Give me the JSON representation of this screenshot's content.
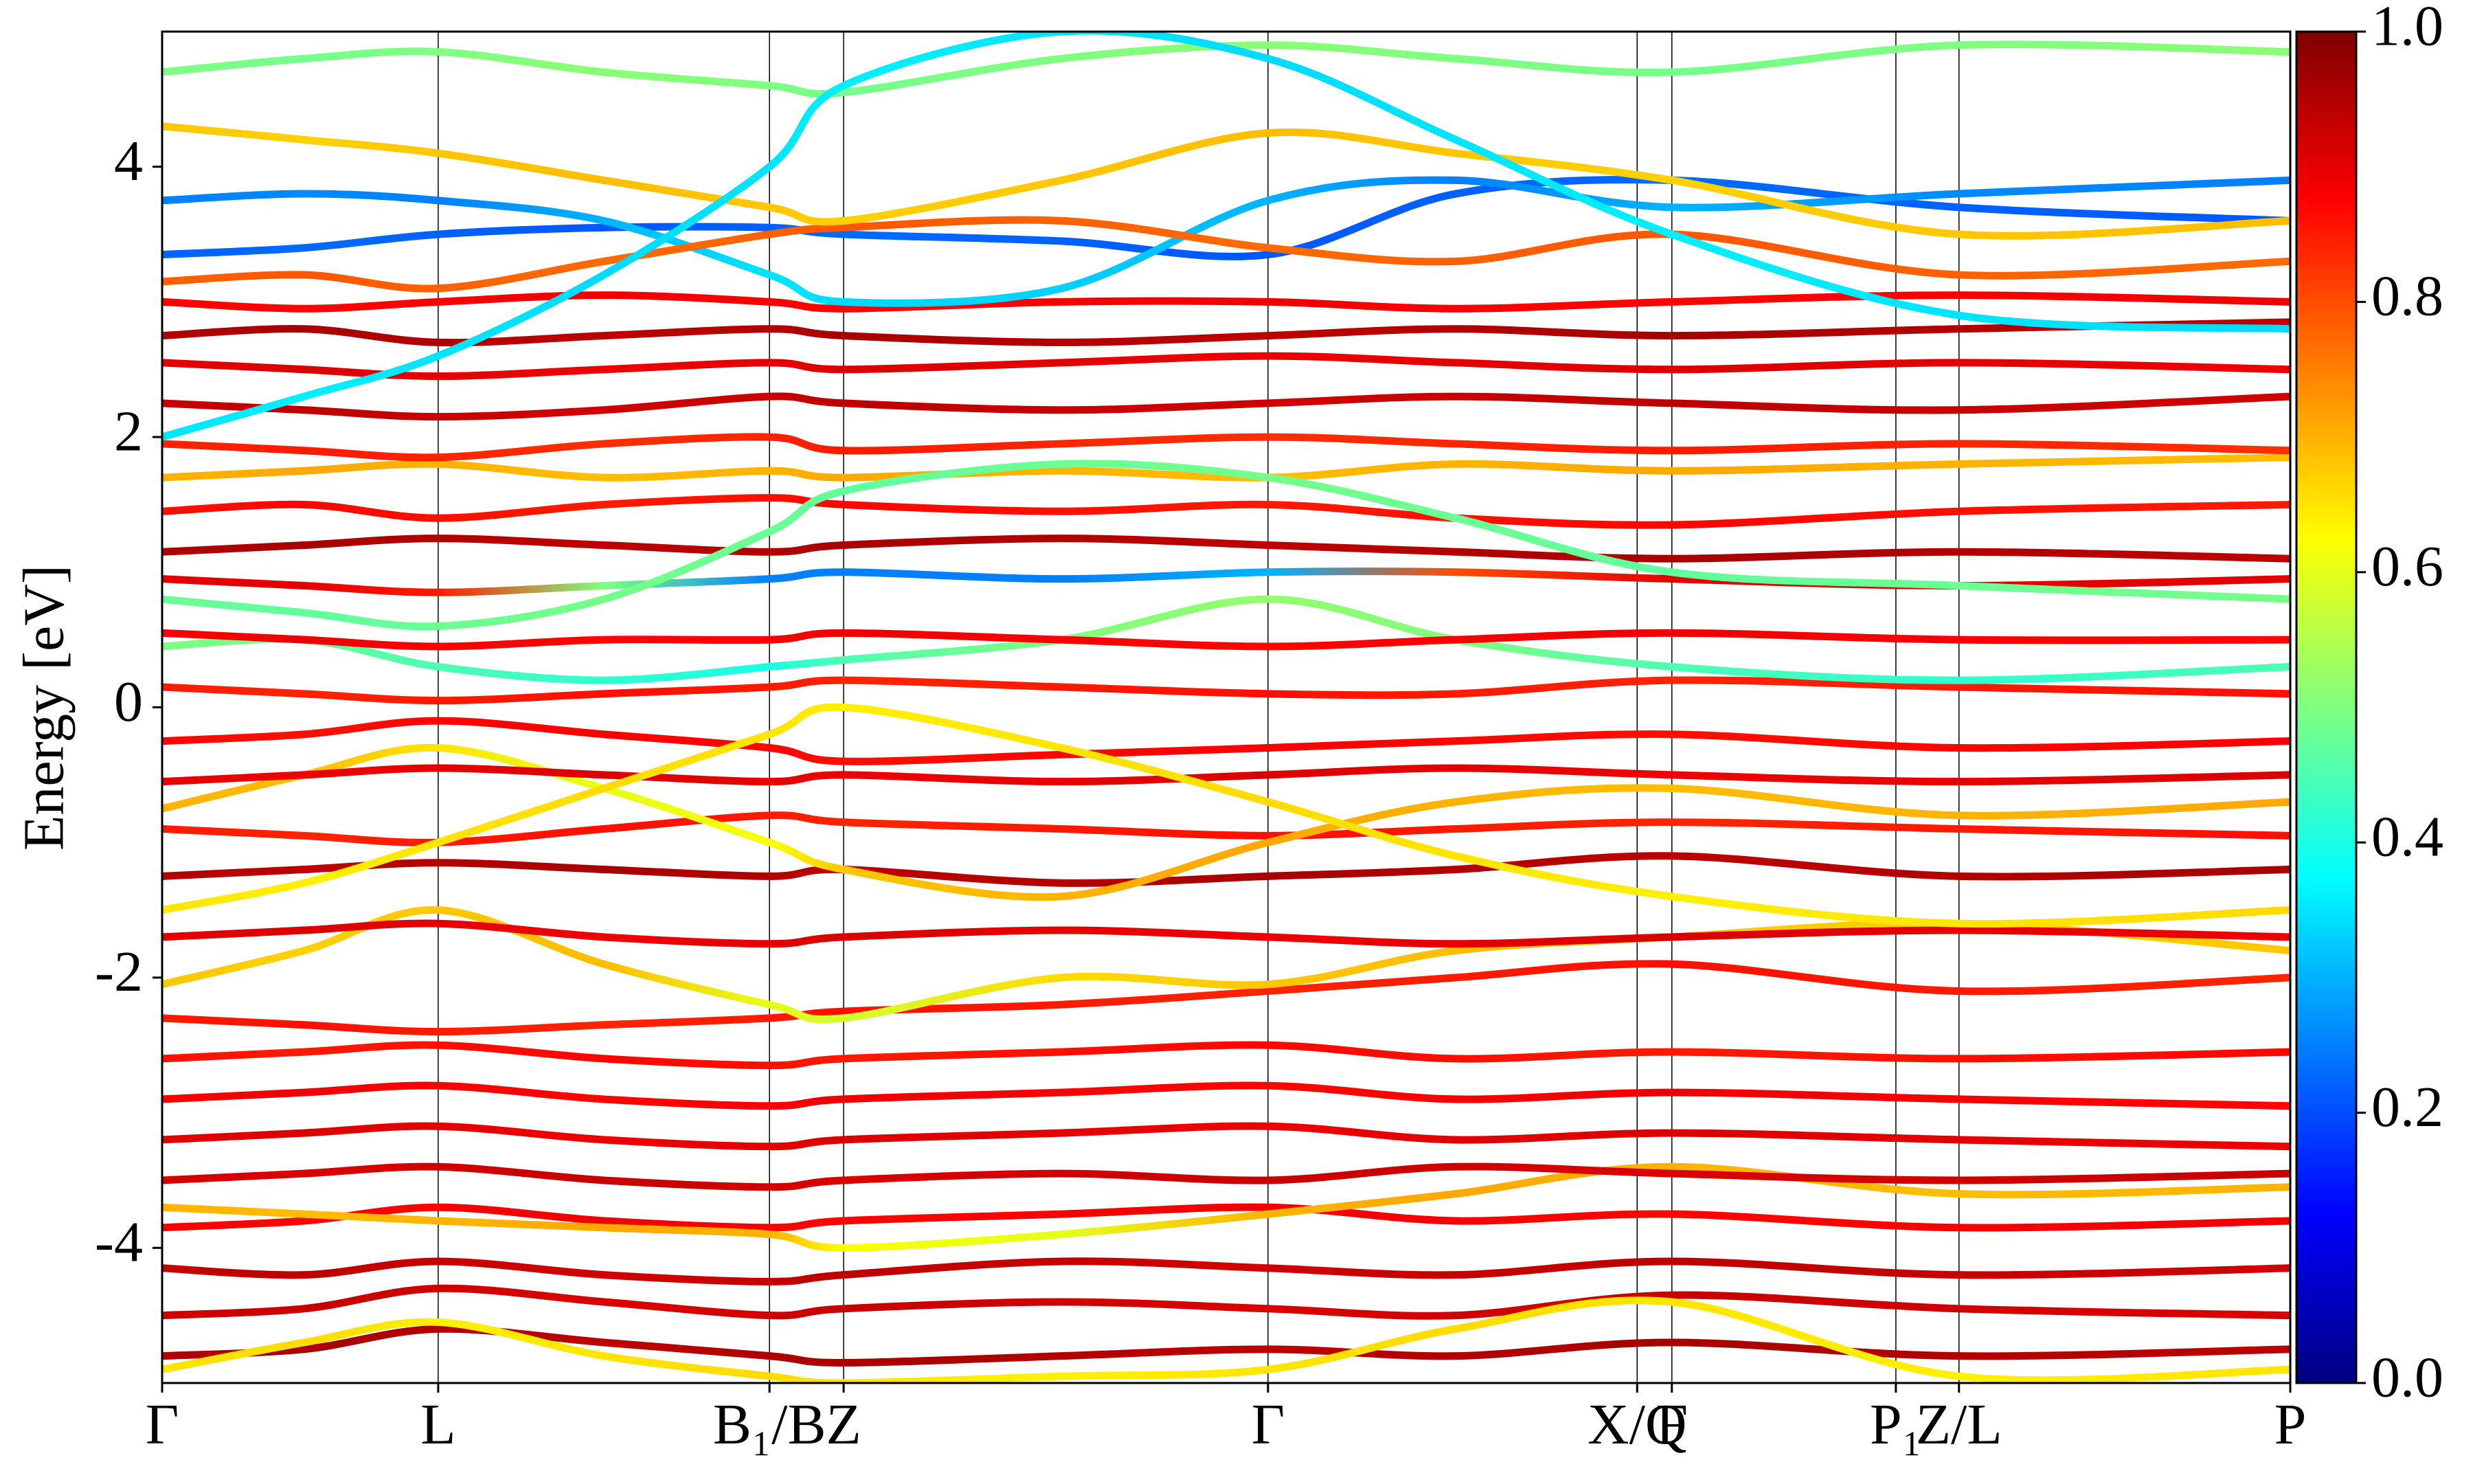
{
  "chart_data": {
    "type": "line",
    "ylabel": "Energy [eV]",
    "xlim": [
      0,
      1.349
    ],
    "ylim": [
      -5,
      5
    ],
    "yticks": [
      -4,
      -2,
      0,
      2,
      4
    ],
    "xticks": [
      {
        "value": 0,
        "label": "Γ"
      },
      {
        "value": 0.175,
        "label": "L"
      },
      {
        "value": 0.385,
        "label": "B₁/B"
      },
      {
        "value": 0.432,
        "label": "Z"
      },
      {
        "value": 0.701,
        "label": "Γ"
      },
      {
        "value": 0.935,
        "label": "X/Q"
      },
      {
        "value": 0.957,
        "label": "F"
      },
      {
        "value": 1.099,
        "label": "P₁"
      },
      {
        "value": 1.139,
        "label": "Z/L"
      },
      {
        "value": 1.349,
        "label": "P"
      }
    ],
    "colormap": "jet",
    "clim": [
      0,
      1
    ],
    "cticks": [
      {
        "value": 0,
        "label": "0.0"
      },
      0.2,
      0.4,
      0.6,
      0.8,
      {
        "value": 1,
        "label": "1.0"
      }
    ],
    "x": [
      0,
      0.09,
      0.175,
      0.28,
      0.385,
      0.432,
      0.57,
      0.701,
      0.82,
      0.957,
      1.139,
      1.349
    ],
    "series": [
      {
        "values": [
          -4.8,
          -4.75,
          -4.6,
          -4.7,
          -4.8,
          -4.85,
          -4.8,
          -4.75,
          -4.8,
          -4.7,
          -4.8,
          -4.75
        ],
        "weights": [
          0.95,
          0.96,
          0.95,
          0.94,
          0.95,
          0.96,
          0.95,
          0.94,
          0.95,
          0.96,
          0.95,
          0.94
        ]
      },
      {
        "values": [
          -4.5,
          -4.45,
          -4.3,
          -4.4,
          -4.5,
          -4.45,
          -4.4,
          -4.45,
          -4.5,
          -4.35,
          -4.45,
          -4.5
        ],
        "weights": [
          0.92,
          0.93,
          0.92,
          0.91,
          0.92,
          0.93,
          0.92,
          0.91,
          0.92,
          0.93,
          0.92,
          0.91
        ]
      },
      {
        "values": [
          -4.9,
          -4.7,
          -4.55,
          -4.8,
          -4.95,
          -5,
          -4.95,
          -4.9,
          -4.6,
          -4.4,
          -4.95,
          -4.9
        ],
        "weights": [
          0.65,
          0.66,
          0.64,
          0.65,
          0.66,
          0.65,
          0.64,
          0.65,
          0.66,
          0.65,
          0.64,
          0.65
        ]
      },
      {
        "values": [
          -4.15,
          -4.2,
          -4.1,
          -4.2,
          -4.25,
          -4.2,
          -4.1,
          -4.15,
          -4.2,
          -4.1,
          -4.2,
          -4.15
        ],
        "weights": [
          0.93,
          0.94,
          0.93,
          0.92,
          0.93,
          0.94,
          0.93,
          0.92,
          0.93,
          0.94,
          0.93,
          0.92
        ]
      },
      {
        "values": [
          -3.85,
          -3.8,
          -3.7,
          -3.8,
          -3.85,
          -3.8,
          -3.75,
          -3.7,
          -3.8,
          -3.75,
          -3.85,
          -3.8
        ],
        "weights": [
          0.88,
          0.87,
          0.88,
          0.89,
          0.88,
          0.87,
          0.88,
          0.89,
          0.88,
          0.87,
          0.88,
          0.89
        ]
      },
      {
        "values": [
          -3.7,
          -3.75,
          -3.8,
          -3.85,
          -3.9,
          -4.0,
          -3.9,
          -3.75,
          -3.6,
          -3.4,
          -3.6,
          -3.55
        ],
        "weights": [
          0.7,
          0.69,
          0.7,
          0.71,
          0.7,
          0.62,
          0.6,
          0.7,
          0.71,
          0.7,
          0.69,
          0.7
        ]
      },
      {
        "values": [
          -3.5,
          -3.45,
          -3.4,
          -3.5,
          -3.55,
          -3.5,
          -3.45,
          -3.5,
          -3.4,
          -3.45,
          -3.5,
          -3.45
        ],
        "weights": [
          0.92,
          0.91,
          0.92,
          0.93,
          0.92,
          0.91,
          0.92,
          0.93,
          0.92,
          0.91,
          0.92,
          0.93
        ]
      },
      {
        "values": [
          -3.2,
          -3.15,
          -3.1,
          -3.2,
          -3.25,
          -3.2,
          -3.15,
          -3.1,
          -3.2,
          -3.15,
          -3.2,
          -3.25
        ],
        "weights": [
          0.9,
          0.91,
          0.9,
          0.89,
          0.9,
          0.91,
          0.9,
          0.89,
          0.9,
          0.91,
          0.9,
          0.89
        ]
      },
      {
        "values": [
          -2.9,
          -2.85,
          -2.8,
          -2.9,
          -2.95,
          -2.9,
          -2.85,
          -2.8,
          -2.9,
          -2.85,
          -2.9,
          -2.95
        ],
        "weights": [
          0.88,
          0.89,
          0.88,
          0.87,
          0.88,
          0.89,
          0.88,
          0.87,
          0.88,
          0.89,
          0.88,
          0.87
        ]
      },
      {
        "values": [
          -2.6,
          -2.55,
          -2.5,
          -2.6,
          -2.65,
          -2.6,
          -2.55,
          -2.5,
          -2.6,
          -2.55,
          -2.6,
          -2.55
        ],
        "weights": [
          0.86,
          0.85,
          0.86,
          0.87,
          0.86,
          0.85,
          0.86,
          0.87,
          0.86,
          0.85,
          0.86,
          0.87
        ]
      },
      {
        "values": [
          -2.3,
          -2.35,
          -2.4,
          -2.35,
          -2.3,
          -2.25,
          -2.2,
          -2.1,
          -2.0,
          -1.9,
          -2.1,
          -2.0
        ],
        "weights": [
          0.85,
          0.86,
          0.85,
          0.84,
          0.85,
          0.86,
          0.85,
          0.84,
          0.85,
          0.86,
          0.85,
          0.84
        ]
      },
      {
        "values": [
          -2.05,
          -1.8,
          -1.5,
          -1.9,
          -2.2,
          -2.3,
          -2.0,
          -2.05,
          -1.8,
          -1.7,
          -1.6,
          -1.8
        ],
        "weights": [
          0.68,
          0.67,
          0.68,
          0.69,
          0.6,
          0.58,
          0.66,
          0.68,
          0.69,
          0.68,
          0.67,
          0.68
        ]
      },
      {
        "values": [
          -1.7,
          -1.65,
          -1.6,
          -1.7,
          -1.75,
          -1.7,
          -1.65,
          -1.7,
          -1.75,
          -1.7,
          -1.65,
          -1.7
        ],
        "weights": [
          0.9,
          0.91,
          0.9,
          0.89,
          0.9,
          0.91,
          0.9,
          0.89,
          0.9,
          0.91,
          0.9,
          0.89
        ]
      },
      {
        "values": [
          -1.25,
          -1.2,
          -1.15,
          -1.2,
          -1.25,
          -1.2,
          -1.3,
          -1.25,
          -1.2,
          -1.1,
          -1.25,
          -1.2
        ],
        "weights": [
          0.95,
          0.94,
          0.95,
          0.96,
          0.95,
          0.94,
          0.95,
          0.96,
          0.95,
          0.94,
          0.95,
          0.96
        ]
      },
      {
        "values": [
          -0.9,
          -0.95,
          -1.0,
          -0.9,
          -0.8,
          -0.85,
          -0.9,
          -0.95,
          -0.9,
          -0.85,
          -0.9,
          -0.95
        ],
        "weights": [
          0.85,
          0.84,
          0.85,
          0.86,
          0.85,
          0.84,
          0.85,
          0.86,
          0.85,
          0.84,
          0.85,
          0.86
        ]
      },
      {
        "values": [
          -0.75,
          -0.5,
          -0.3,
          -0.6,
          -1.0,
          -1.2,
          -1.4,
          -1.0,
          -0.7,
          -0.6,
          -0.8,
          -0.7
        ],
        "weights": [
          0.7,
          0.69,
          0.65,
          0.6,
          0.62,
          0.68,
          0.7,
          0.71,
          0.7,
          0.69,
          0.7,
          0.71
        ]
      },
      {
        "values": [
          -0.55,
          -0.5,
          -0.45,
          -0.5,
          -0.55,
          -0.5,
          -0.55,
          -0.5,
          -0.45,
          -0.5,
          -0.55,
          -0.5
        ],
        "weights": [
          0.9,
          0.89,
          0.9,
          0.91,
          0.9,
          0.89,
          0.9,
          0.91,
          0.9,
          0.89,
          0.9,
          0.91
        ]
      },
      {
        "values": [
          -0.25,
          -0.2,
          -0.1,
          -0.2,
          -0.3,
          -0.4,
          -0.35,
          -0.3,
          -0.25,
          -0.2,
          -0.3,
          -0.25
        ],
        "weights": [
          0.87,
          0.86,
          0.87,
          0.88,
          0.87,
          0.86,
          0.87,
          0.88,
          0.87,
          0.86,
          0.87,
          0.88
        ]
      },
      {
        "values": [
          0.15,
          0.1,
          0.05,
          0.1,
          0.15,
          0.2,
          0.15,
          0.1,
          0.1,
          0.2,
          0.15,
          0.1
        ],
        "weights": [
          0.85,
          0.84,
          0.85,
          0.86,
          0.85,
          0.84,
          0.85,
          0.86,
          0.85,
          0.84,
          0.85,
          0.86
        ]
      },
      {
        "values": [
          0.45,
          0.5,
          0.3,
          0.2,
          0.3,
          0.35,
          0.5,
          0.8,
          0.5,
          0.3,
          0.2,
          0.3
        ],
        "weights": [
          0.5,
          0.48,
          0.45,
          0.42,
          0.4,
          0.45,
          0.5,
          0.52,
          0.5,
          0.45,
          0.42,
          0.45
        ]
      },
      {
        "values": [
          0.55,
          0.5,
          0.45,
          0.5,
          0.5,
          0.55,
          0.5,
          0.45,
          0.5,
          0.55,
          0.5,
          0.5
        ],
        "weights": [
          0.88,
          0.89,
          0.88,
          0.87,
          0.88,
          0.89,
          0.88,
          0.87,
          0.88,
          0.89,
          0.88,
          0.87
        ]
      },
      {
        "values": [
          0.95,
          0.9,
          0.85,
          0.9,
          0.95,
          1.0,
          0.95,
          1.0,
          1.0,
          0.95,
          0.9,
          0.95
        ],
        "weights": [
          0.9,
          0.9,
          0.85,
          0.5,
          0.25,
          0.25,
          0.25,
          0.3,
          0.8,
          0.9,
          0.9,
          0.9
        ]
      },
      {
        "values": [
          1.15,
          1.2,
          1.25,
          1.2,
          1.15,
          1.2,
          1.25,
          1.2,
          1.15,
          1.1,
          1.15,
          1.1
        ],
        "weights": [
          0.95,
          0.96,
          0.95,
          0.94,
          0.95,
          0.96,
          0.95,
          0.94,
          0.95,
          0.96,
          0.95,
          0.94
        ]
      },
      {
        "values": [
          1.45,
          1.5,
          1.4,
          1.5,
          1.55,
          1.5,
          1.45,
          1.5,
          1.4,
          1.35,
          1.45,
          1.5
        ],
        "weights": [
          0.86,
          0.87,
          0.86,
          0.85,
          0.86,
          0.87,
          0.86,
          0.85,
          0.86,
          0.87,
          0.86,
          0.85
        ]
      },
      {
        "values": [
          1.7,
          1.75,
          1.8,
          1.7,
          1.75,
          1.7,
          1.75,
          1.7,
          1.8,
          1.75,
          1.8,
          1.85
        ],
        "weights": [
          0.7,
          0.71,
          0.7,
          0.69,
          0.7,
          0.71,
          0.7,
          0.69,
          0.7,
          0.71,
          0.7,
          0.69
        ]
      },
      {
        "values": [
          1.95,
          1.9,
          1.85,
          1.95,
          2.0,
          1.9,
          1.95,
          2.0,
          1.95,
          1.9,
          1.95,
          1.9
        ],
        "weights": [
          0.84,
          0.85,
          0.84,
          0.83,
          0.84,
          0.85,
          0.84,
          0.83,
          0.84,
          0.85,
          0.84,
          0.83
        ]
      },
      {
        "values": [
          2.25,
          2.2,
          2.15,
          2.2,
          2.3,
          2.25,
          2.2,
          2.25,
          2.3,
          2.25,
          2.2,
          2.3
        ],
        "weights": [
          0.93,
          0.94,
          0.93,
          0.92,
          0.93,
          0.94,
          0.93,
          0.92,
          0.93,
          0.94,
          0.93,
          0.92
        ]
      },
      {
        "values": [
          2.55,
          2.5,
          2.45,
          2.5,
          2.55,
          2.5,
          2.55,
          2.6,
          2.55,
          2.5,
          2.55,
          2.5
        ],
        "weights": [
          0.9,
          0.91,
          0.9,
          0.89,
          0.9,
          0.91,
          0.9,
          0.89,
          0.9,
          0.91,
          0.9,
          0.89
        ]
      },
      {
        "values": [
          2.75,
          2.8,
          2.7,
          2.75,
          2.8,
          2.75,
          2.7,
          2.75,
          2.8,
          2.75,
          2.8,
          2.85
        ],
        "weights": [
          0.95,
          0.96,
          0.95,
          0.94,
          0.95,
          0.96,
          0.95,
          0.94,
          0.95,
          0.96,
          0.95,
          0.94
        ]
      },
      {
        "values": [
          3.0,
          2.95,
          3.0,
          3.05,
          3.0,
          2.95,
          3.0,
          3.0,
          2.95,
          3.0,
          3.05,
          3.0
        ],
        "weights": [
          0.88,
          0.87,
          0.88,
          0.89,
          0.88,
          0.87,
          0.88,
          0.89,
          0.88,
          0.87,
          0.88,
          0.89
        ]
      },
      {
        "values": [
          3.35,
          3.4,
          3.5,
          3.55,
          3.55,
          3.5,
          3.45,
          3.35,
          3.8,
          3.9,
          3.7,
          3.6
        ],
        "weights": [
          0.22,
          0.23,
          0.22,
          0.21,
          0.22,
          0.23,
          0.22,
          0.21,
          0.22,
          0.23,
          0.22,
          0.21
        ]
      },
      {
        "values": [
          3.75,
          3.8,
          3.75,
          3.6,
          3.2,
          3.0,
          3.1,
          3.75,
          3.9,
          3.7,
          3.8,
          3.9
        ],
        "weights": [
          0.25,
          0.26,
          0.25,
          0.3,
          0.35,
          0.34,
          0.33,
          0.3,
          0.25,
          0.3,
          0.26,
          0.25
        ]
      },
      {
        "values": [
          3.15,
          3.2,
          3.1,
          3.3,
          3.5,
          3.55,
          3.6,
          3.4,
          3.3,
          3.5,
          3.2,
          3.3
        ],
        "weights": [
          0.78,
          0.79,
          0.78,
          0.77,
          0.78,
          0.79,
          0.78,
          0.77,
          0.78,
          0.79,
          0.78,
          0.77
        ]
      },
      {
        "values": [
          4.3,
          4.2,
          4.1,
          3.9,
          3.7,
          3.6,
          3.9,
          4.25,
          4.1,
          3.9,
          3.5,
          3.6
        ],
        "weights": [
          0.68,
          0.67,
          0.68,
          0.69,
          0.68,
          0.67,
          0.68,
          0.69,
          0.68,
          0.67,
          0.68,
          0.69
        ]
      },
      {
        "values": [
          4.7,
          4.8,
          4.85,
          4.7,
          4.6,
          4.55,
          4.8,
          4.9,
          4.8,
          4.7,
          4.9,
          4.85
        ],
        "weights": [
          0.5,
          0.49,
          0.5,
          0.51,
          0.5,
          0.49,
          0.5,
          0.51,
          0.5,
          0.49,
          0.5,
          0.51
        ]
      },
      {
        "values": [
          2.0,
          2.3,
          2.6,
          3.2,
          4.0,
          4.6,
          5.0,
          4.8,
          4.2,
          3.5,
          2.9,
          2.8
        ],
        "weights": [
          0.35,
          0.36,
          0.35,
          0.34,
          0.35,
          0.36,
          0.35,
          0.34,
          0.35,
          0.36,
          0.35,
          0.34
        ]
      },
      {
        "values": [
          -1.5,
          -1.3,
          -1.0,
          -0.6,
          -0.2,
          0.0,
          -0.3,
          -0.7,
          -1.1,
          -1.4,
          -1.6,
          -1.5
        ],
        "weights": [
          0.65,
          0.64,
          0.65,
          0.66,
          0.65,
          0.64,
          0.65,
          0.66,
          0.65,
          0.64,
          0.65,
          0.66
        ]
      },
      {
        "values": [
          0.8,
          0.7,
          0.6,
          0.8,
          1.3,
          1.6,
          1.8,
          1.7,
          1.4,
          1.0,
          0.9,
          0.8
        ],
        "weights": [
          0.48,
          0.47,
          0.48,
          0.49,
          0.48,
          0.47,
          0.48,
          0.49,
          0.48,
          0.47,
          0.48,
          0.49
        ]
      }
    ]
  }
}
